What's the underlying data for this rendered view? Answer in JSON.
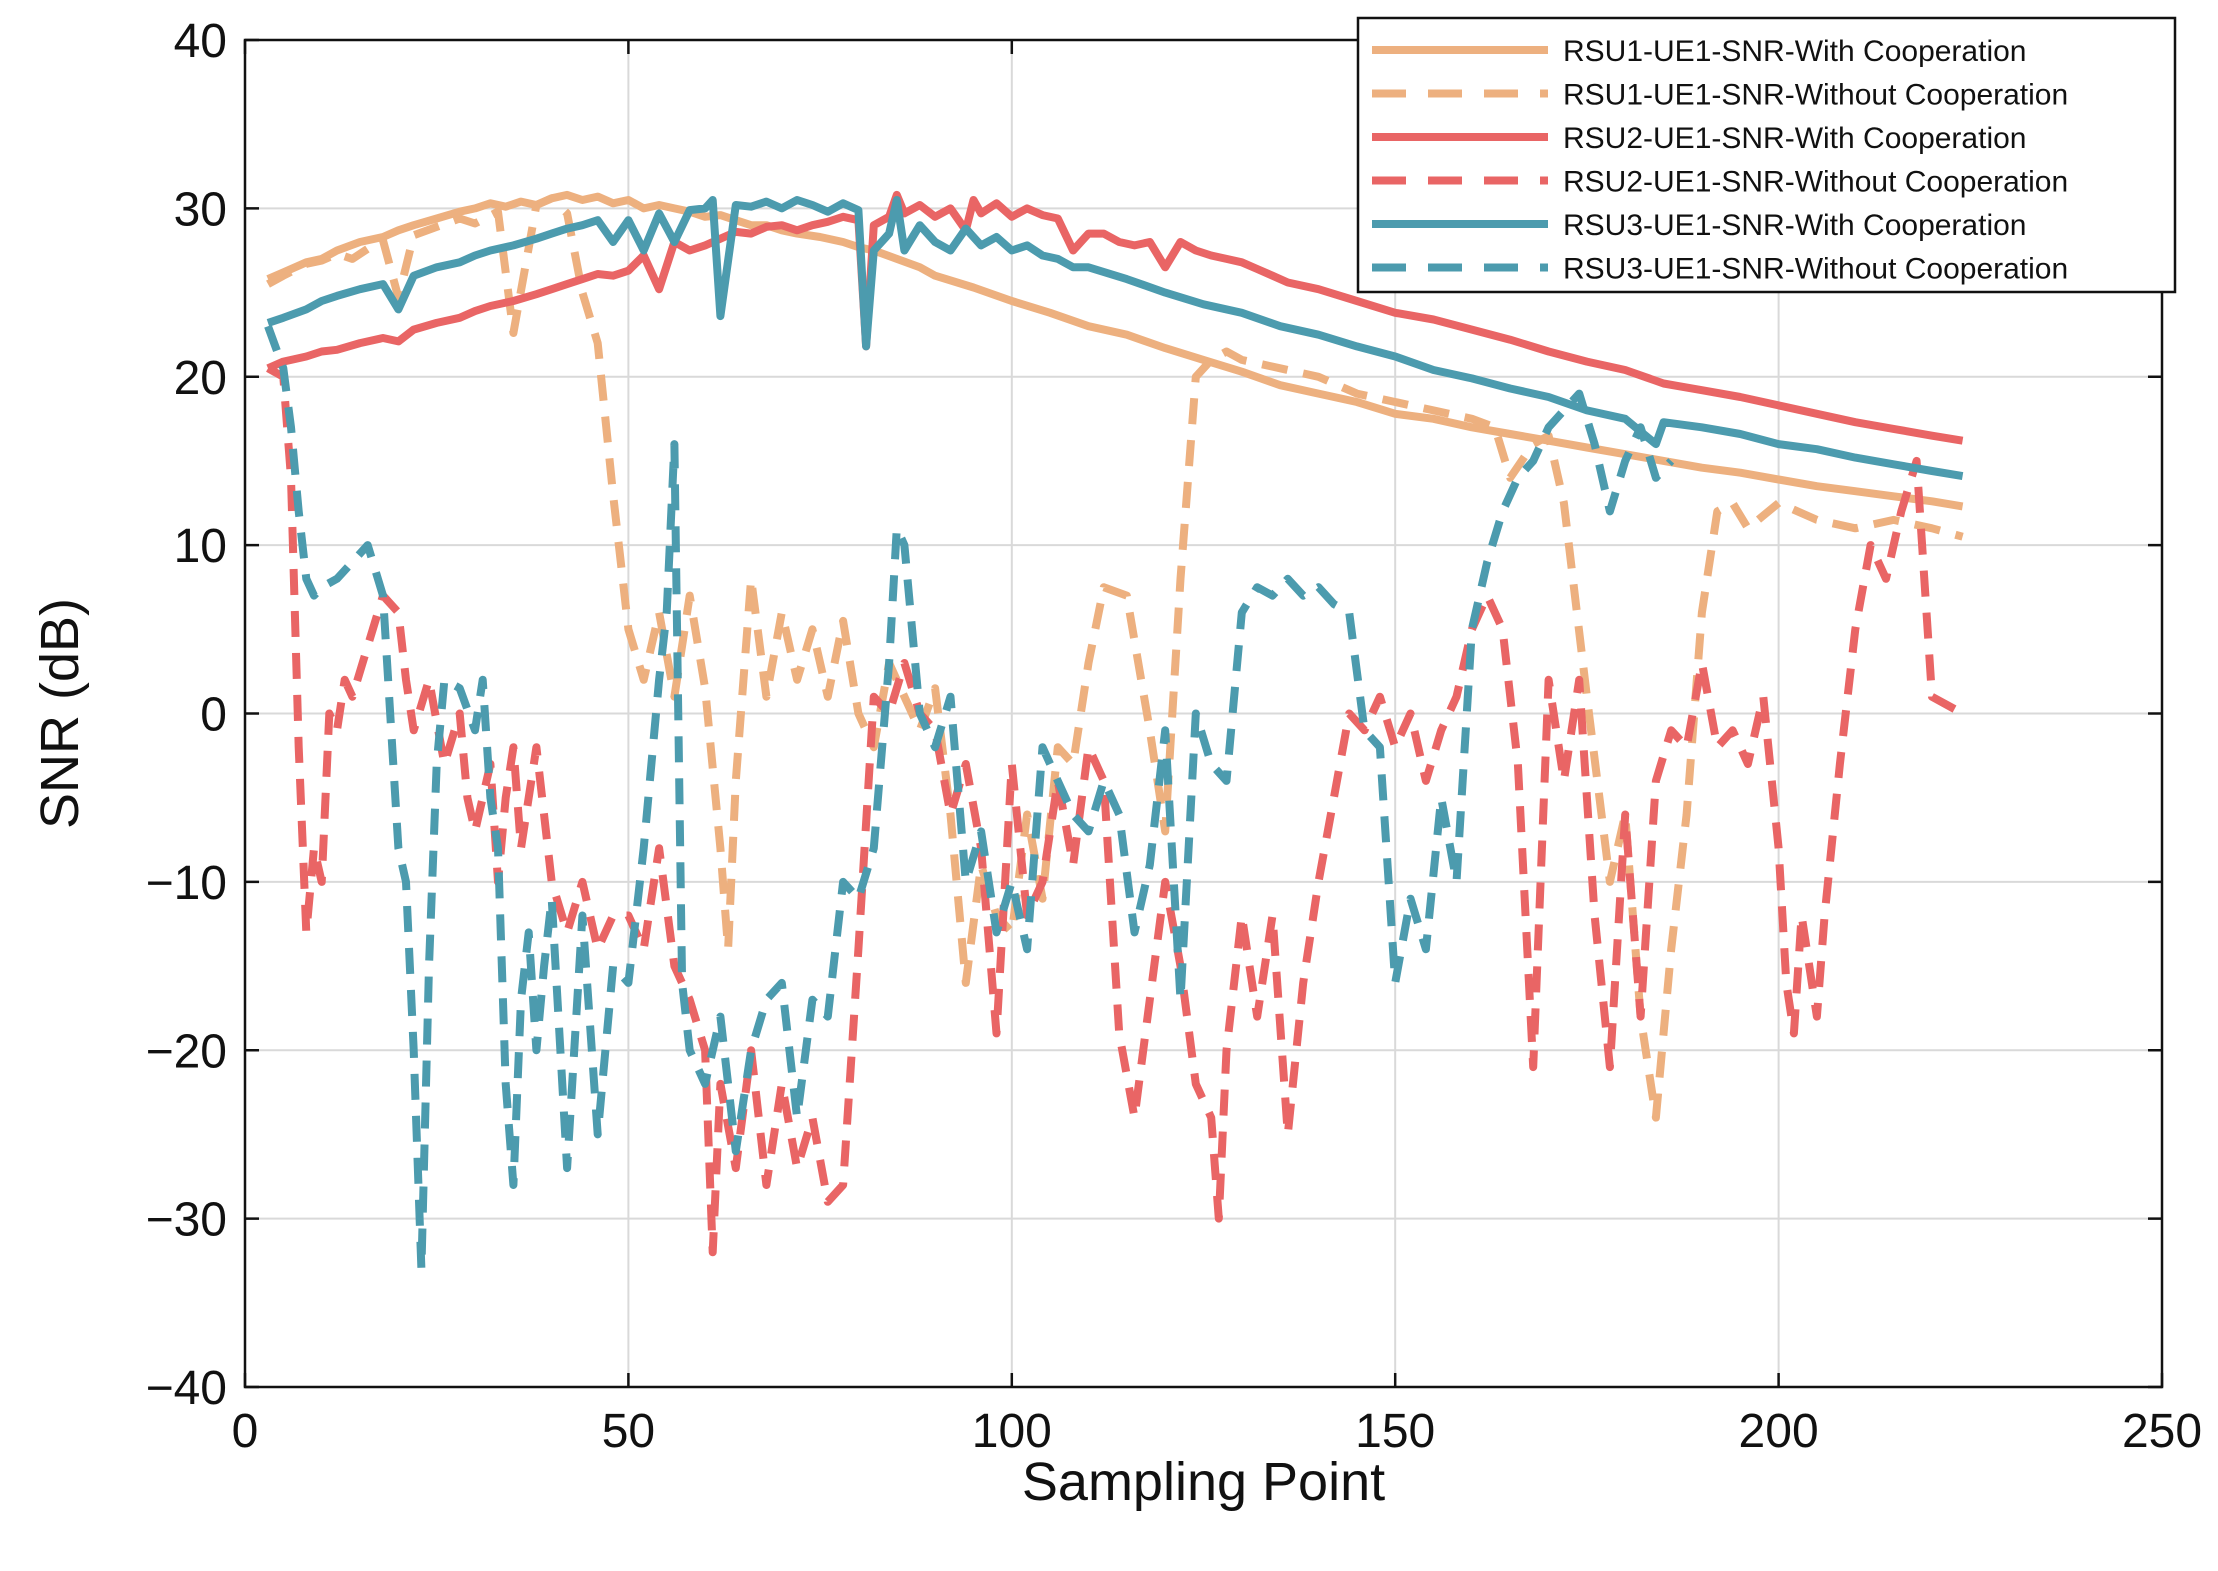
{
  "chart_data": {
    "type": "line",
    "title": "",
    "xlabel": "Sampling Point",
    "ylabel": "SNR (dB)",
    "xlim": [
      0,
      250
    ],
    "ylim": [
      -40,
      40
    ],
    "xticks": [
      0,
      50,
      100,
      150,
      200,
      250
    ],
    "yticks": [
      -40,
      -30,
      -20,
      -10,
      0,
      10,
      20,
      30,
      40
    ],
    "xtick_labels": [
      "0",
      "50",
      "100",
      "150",
      "200",
      "250"
    ],
    "ytick_labels": [
      "−40",
      "−30",
      "−20",
      "−10",
      "0",
      "10",
      "20",
      "30",
      "40"
    ],
    "grid": true,
    "legend_position": "top-right",
    "series": [
      {
        "name": "RSU1-UE1-SNR-With Cooperation",
        "color": "#EDB07F",
        "style": "solid",
        "x": [
          3,
          5,
          8,
          10,
          12,
          15,
          18,
          20,
          22,
          25,
          28,
          30,
          32,
          34,
          36,
          38,
          40,
          42,
          44,
          46,
          48,
          50,
          52,
          54,
          56,
          58,
          60,
          62,
          64,
          66,
          68,
          70,
          72,
          75,
          78,
          80,
          82,
          85,
          88,
          90,
          95,
          100,
          105,
          110,
          115,
          120,
          125,
          130,
          135,
          140,
          145,
          150,
          155,
          160,
          165,
          170,
          175,
          180,
          185,
          190,
          195,
          200,
          205,
          210,
          215,
          220,
          224
        ],
        "values": [
          25.8,
          26.2,
          26.8,
          27.0,
          27.5,
          28.0,
          28.3,
          28.7,
          29.0,
          29.4,
          29.8,
          30.0,
          30.3,
          30.1,
          30.4,
          30.2,
          30.6,
          30.8,
          30.5,
          30.7,
          30.3,
          30.5,
          30.0,
          30.2,
          30.0,
          29.8,
          29.5,
          29.6,
          29.3,
          29.0,
          29.0,
          28.7,
          28.5,
          28.3,
          28.0,
          27.7,
          27.5,
          27.0,
          26.5,
          26.0,
          25.3,
          24.5,
          23.8,
          23.0,
          22.5,
          21.7,
          21.0,
          20.3,
          19.5,
          19.0,
          18.5,
          17.8,
          17.5,
          17.0,
          16.6,
          16.2,
          15.8,
          15.4,
          15.0,
          14.6,
          14.3,
          13.9,
          13.5,
          13.2,
          12.9,
          12.6,
          12.3
        ]
      },
      {
        "name": "RSU1-UE1-SNR-Without Cooperation",
        "color": "#EDB07F",
        "style": "dashed",
        "x": [
          3,
          5,
          8,
          10,
          12,
          14,
          16,
          18,
          20,
          22,
          25,
          28,
          30,
          33,
          35,
          38,
          40,
          42,
          44,
          46,
          48,
          50,
          52,
          54,
          56,
          58,
          60,
          62,
          63,
          64,
          66,
          68,
          70,
          72,
          74,
          76,
          78,
          80,
          82,
          84,
          86,
          88,
          90,
          92,
          94,
          96,
          98,
          100,
          102,
          104,
          106,
          108,
          110,
          112,
          115,
          118,
          120,
          122,
          124,
          126,
          128,
          130,
          135,
          140,
          145,
          150,
          155,
          160,
          163,
          165,
          168,
          170,
          172,
          175,
          178,
          180,
          182,
          184,
          186,
          188,
          190,
          192,
          194,
          196,
          200,
          205,
          210,
          215,
          220,
          224
        ],
        "values": [
          25.5,
          26.0,
          26.7,
          26.9,
          27.3,
          27.0,
          27.6,
          28.1,
          24.7,
          28.4,
          28.9,
          29.4,
          29.1,
          29.8,
          22.6,
          30.2,
          30.6,
          29.7,
          25.0,
          22.0,
          13.0,
          5.0,
          2.0,
          6.0,
          1.0,
          7.0,
          1.5,
          -8.0,
          -14.0,
          -4.0,
          8.0,
          1.0,
          6.0,
          2.0,
          5.0,
          1.0,
          5.5,
          0.0,
          -2.0,
          3.0,
          1.0,
          -1.0,
          1.5,
          -6.0,
          -16.0,
          -9.0,
          -12.0,
          -13.0,
          -6.0,
          -11.0,
          -2.0,
          -3.0,
          3.0,
          7.5,
          7.0,
          -1.0,
          -7.0,
          8.0,
          20.0,
          21.0,
          21.5,
          21.0,
          20.5,
          20.0,
          19.0,
          18.5,
          18.0,
          17.5,
          17.0,
          14.0,
          16.0,
          16.5,
          12.5,
          1.0,
          -10.0,
          -6.0,
          -18.0,
          -24.0,
          -14.0,
          -6.0,
          6.0,
          12.0,
          12.5,
          11.0,
          12.5,
          11.5,
          11.0,
          11.5,
          11.0,
          10.5
        ]
      },
      {
        "name": "RSU2-UE1-SNR-With Cooperation",
        "color": "#E96565",
        "style": "solid",
        "x": [
          3,
          5,
          8,
          10,
          12,
          15,
          18,
          20,
          22,
          25,
          28,
          30,
          32,
          35,
          38,
          40,
          42,
          44,
          46,
          48,
          50,
          52,
          54,
          56,
          58,
          60,
          62,
          64,
          66,
          68,
          70,
          72,
          74,
          76,
          78,
          80,
          81,
          82,
          84,
          85,
          86,
          88,
          90,
          92,
          94,
          95,
          96,
          98,
          100,
          102,
          104,
          106,
          108,
          110,
          112,
          114,
          116,
          118,
          120,
          122,
          124,
          126,
          128,
          130,
          132,
          134,
          136,
          140,
          145,
          150,
          155,
          160,
          165,
          170,
          175,
          180,
          185,
          190,
          195,
          200,
          205,
          210,
          215,
          220,
          224
        ],
        "values": [
          20.5,
          20.9,
          21.2,
          21.5,
          21.6,
          22.0,
          22.3,
          22.1,
          22.8,
          23.2,
          23.5,
          23.9,
          24.2,
          24.5,
          24.9,
          25.2,
          25.5,
          25.8,
          26.1,
          26.0,
          26.3,
          27.2,
          25.2,
          28.0,
          27.5,
          27.8,
          28.2,
          28.6,
          28.5,
          28.9,
          29.0,
          28.7,
          29.0,
          29.2,
          29.5,
          29.3,
          21.8,
          29.0,
          29.5,
          30.8,
          29.7,
          30.2,
          29.5,
          30.0,
          28.7,
          30.5,
          29.7,
          30.3,
          29.5,
          30.0,
          29.6,
          29.4,
          27.5,
          28.5,
          28.5,
          28.0,
          27.8,
          28.0,
          26.5,
          28.0,
          27.5,
          27.2,
          27.0,
          26.8,
          26.4,
          26.0,
          25.6,
          25.2,
          24.5,
          23.8,
          23.4,
          22.8,
          22.2,
          21.5,
          20.9,
          20.4,
          19.6,
          19.2,
          18.8,
          18.3,
          17.8,
          17.3,
          16.9,
          16.5,
          16.2
        ]
      },
      {
        "name": "RSU2-UE1-SNR-Without Cooperation",
        "color": "#E96565",
        "style": "dashed",
        "x": [
          3,
          5,
          6,
          7,
          8,
          9,
          10,
          11,
          12,
          13,
          14,
          16,
          18,
          19,
          20,
          21,
          22,
          24,
          26,
          28,
          29,
          30,
          32,
          33,
          34,
          35,
          36,
          38,
          40,
          42,
          44,
          46,
          48,
          50,
          52,
          54,
          56,
          58,
          60,
          61,
          62,
          64,
          66,
          68,
          70,
          72,
          74,
          76,
          78,
          80,
          82,
          84,
          86,
          88,
          90,
          92,
          94,
          96,
          98,
          100,
          102,
          104,
          106,
          108,
          110,
          112,
          114,
          116,
          118,
          120,
          122,
          124,
          126,
          127,
          128,
          130,
          132,
          134,
          136,
          138,
          140,
          142,
          144,
          146,
          148,
          150,
          152,
          154,
          156,
          158,
          160,
          162,
          164,
          166,
          168,
          170,
          172,
          174,
          176,
          178,
          180,
          182,
          184,
          186,
          188,
          190,
          192,
          194,
          196,
          198,
          200,
          201,
          202,
          203,
          204,
          205,
          206,
          208,
          210,
          212,
          214,
          216,
          218,
          220,
          224
        ],
        "values": [
          20.5,
          20.0,
          14.0,
          -2.0,
          -13.0,
          -8.0,
          -10.0,
          0.0,
          -1.0,
          2.0,
          1.0,
          4.0,
          7.0,
          6.5,
          6.0,
          2.0,
          -1.0,
          2.0,
          -3.0,
          0.0,
          -5.0,
          -7.0,
          -3.0,
          -10.0,
          -5.0,
          -2.0,
          -8.0,
          -2.0,
          -10.0,
          -13.0,
          -10.0,
          -14.0,
          -12.0,
          -12.0,
          -14.0,
          -8.0,
          -15.0,
          -17.0,
          -20.0,
          -32.0,
          -22.0,
          -27.0,
          -20.0,
          -28.0,
          -22.0,
          -27.0,
          -24.0,
          -29.0,
          -28.0,
          -14.0,
          1.0,
          0.0,
          3.0,
          0.0,
          -1.0,
          -6.0,
          -3.0,
          -8.0,
          -19.0,
          -3.0,
          -12.0,
          -10.0,
          -4.0,
          -9.0,
          -2.0,
          -4.0,
          -19.0,
          -24.0,
          -17.0,
          -10.0,
          -15.0,
          -22.0,
          -24.0,
          -30.0,
          -20.0,
          -12.0,
          -18.0,
          -12.0,
          -25.0,
          -16.0,
          -10.0,
          -5.0,
          0.0,
          -1.0,
          1.0,
          -2.0,
          0.0,
          -4.0,
          -1.0,
          1.0,
          5.0,
          7.0,
          5.0,
          -3.0,
          -21.0,
          2.0,
          -4.0,
          2.0,
          -12.0,
          -21.0,
          -6.0,
          -18.0,
          -4.0,
          -1.0,
          -2.0,
          3.0,
          -2.0,
          -1.0,
          -3.0,
          1.0,
          -8.0,
          -16.0,
          -19.0,
          -12.0,
          -15.0,
          -18.0,
          -12.0,
          -3.0,
          5.0,
          10.0,
          8.0,
          12.0,
          15.0,
          1.0,
          0.0
        ]
      },
      {
        "name": "RSU3-UE1-SNR-With Cooperation",
        "color": "#4C9BAE",
        "style": "solid",
        "x": [
          3,
          5,
          8,
          10,
          12,
          15,
          18,
          20,
          22,
          25,
          28,
          30,
          32,
          35,
          38,
          40,
          42,
          44,
          46,
          48,
          50,
          52,
          54,
          56,
          58,
          60,
          61,
          62,
          64,
          66,
          68,
          70,
          72,
          74,
          76,
          78,
          80,
          81,
          82,
          84,
          85,
          86,
          88,
          90,
          92,
          94,
          96,
          98,
          100,
          102,
          104,
          106,
          108,
          110,
          115,
          120,
          125,
          130,
          135,
          140,
          145,
          150,
          155,
          160,
          165,
          170,
          175,
          180,
          184,
          185,
          190,
          195,
          200,
          205,
          210,
          215,
          220,
          224
        ],
        "values": [
          23.2,
          23.5,
          24.0,
          24.5,
          24.8,
          25.2,
          25.5,
          24.0,
          26.0,
          26.5,
          26.8,
          27.2,
          27.5,
          27.8,
          28.2,
          28.5,
          28.8,
          29.0,
          29.3,
          28.0,
          29.3,
          27.5,
          29.7,
          28.0,
          29.9,
          30.0,
          30.5,
          23.6,
          30.2,
          30.1,
          30.4,
          30.0,
          30.5,
          30.2,
          29.8,
          30.3,
          29.9,
          21.8,
          27.5,
          28.5,
          30.5,
          27.5,
          29.0,
          28.0,
          27.5,
          28.8,
          27.8,
          28.3,
          27.5,
          27.8,
          27.2,
          27.0,
          26.5,
          26.5,
          25.8,
          25.0,
          24.3,
          23.8,
          23.0,
          22.5,
          21.8,
          21.2,
          20.4,
          19.9,
          19.3,
          18.8,
          18.0,
          17.5,
          16.0,
          17.3,
          17.0,
          16.6,
          16.0,
          15.7,
          15.2,
          14.8,
          14.4,
          14.1
        ]
      },
      {
        "name": "RSU3-UE1-SNR-Without Cooperation",
        "color": "#4C9BAE",
        "style": "dashed",
        "x": [
          3,
          5,
          6,
          7,
          8,
          9,
          10,
          12,
          14,
          16,
          18,
          20,
          21,
          22,
          23,
          24,
          25,
          26,
          28,
          30,
          31,
          32,
          33,
          34,
          35,
          36,
          37,
          38,
          39,
          40,
          42,
          44,
          46,
          48,
          50,
          52,
          54,
          55,
          56,
          57,
          58,
          60,
          62,
          64,
          66,
          68,
          70,
          72,
          74,
          76,
          78,
          80,
          82,
          84,
          85,
          86,
          88,
          90,
          92,
          94,
          96,
          98,
          100,
          102,
          104,
          106,
          108,
          110,
          112,
          114,
          116,
          118,
          120,
          122,
          124,
          126,
          128,
          130,
          132,
          134,
          136,
          138,
          140,
          142,
          144,
          146,
          148,
          150,
          152,
          154,
          156,
          158,
          160,
          162,
          164,
          166,
          168,
          170,
          172,
          174,
          176,
          178,
          180,
          182,
          184,
          186
        ],
        "values": [
          23.0,
          20.5,
          17.0,
          12.0,
          8.0,
          7.0,
          7.5,
          8.0,
          9.0,
          10.0,
          7.0,
          -8.0,
          -10.0,
          -20.0,
          -33.0,
          -15.0,
          -3.0,
          2.0,
          1.5,
          -1.0,
          2.0,
          -5.0,
          -8.0,
          -22.0,
          -28.0,
          -17.0,
          -13.0,
          -20.0,
          -15.0,
          -11.0,
          -27.0,
          -12.0,
          -25.0,
          -15.0,
          -16.0,
          -8.0,
          2.0,
          6.0,
          16.0,
          -16.0,
          -20.0,
          -22.0,
          -18.0,
          -26.0,
          -20.0,
          -17.0,
          -16.0,
          -24.0,
          -17.0,
          -18.0,
          -10.0,
          -11.0,
          -8.0,
          3.0,
          11.0,
          10.0,
          0.0,
          -2.0,
          1.0,
          -10.0,
          -7.0,
          -13.0,
          -10.0,
          -14.0,
          -2.0,
          -4.0,
          -6.0,
          -7.0,
          -4.0,
          -6.0,
          -13.0,
          -9.0,
          -1.0,
          -17.0,
          0.0,
          -3.0,
          -4.0,
          6.0,
          7.5,
          7.0,
          8.0,
          7.0,
          7.5,
          6.5,
          6.0,
          -1.0,
          -2.0,
          -16.0,
          -11.0,
          -14.0,
          -5.0,
          -10.0,
          5.0,
          9.0,
          12.0,
          14.0,
          15.0,
          17.0,
          18.0,
          19.0,
          16.0,
          12.0,
          15.0,
          17.0,
          14.0,
          15.0
        ]
      }
    ]
  }
}
